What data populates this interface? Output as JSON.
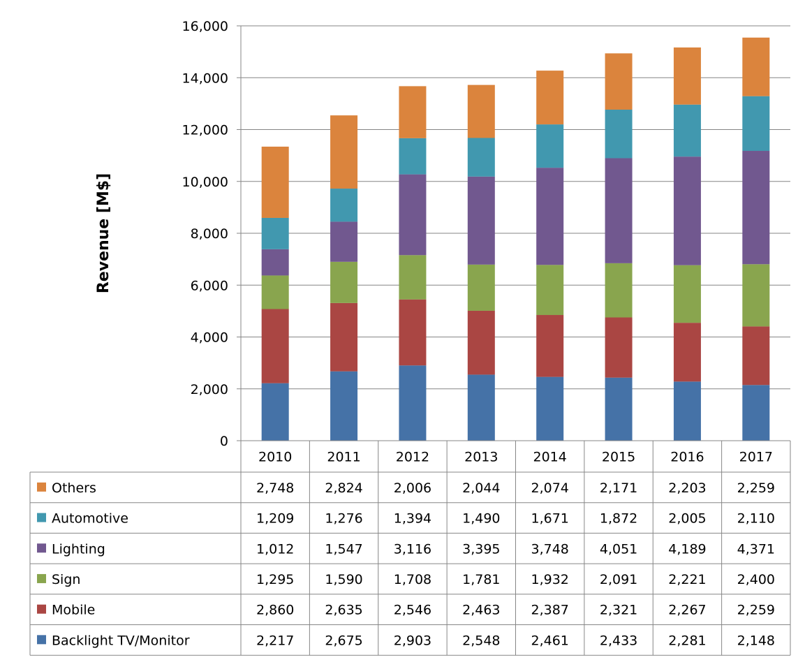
{
  "chart_data": {
    "type": "bar",
    "stacked": true,
    "title": "",
    "xlabel": "",
    "ylabel": "Revenue [M$]",
    "ylim": [
      0,
      16000
    ],
    "yticks": [
      "0",
      "2,000",
      "4,000",
      "6,000",
      "8,000",
      "10,000",
      "12,000",
      "14,000",
      "16,000"
    ],
    "grid": true,
    "legend": "data-table",
    "categories": [
      "2010",
      "2011",
      "2012",
      "2013",
      "2014",
      "2015",
      "2016",
      "2017"
    ],
    "series": [
      {
        "name": "Backlight TV/Monitor",
        "color": "#4572A7",
        "values": [
          2217,
          2675,
          2903,
          2548,
          2461,
          2433,
          2281,
          2148
        ],
        "labels": [
          "2,217",
          "2,675",
          "2,903",
          "2,548",
          "2,461",
          "2,433",
          "2,281",
          "2,148"
        ]
      },
      {
        "name": "Mobile",
        "color": "#AA4643",
        "values": [
          2860,
          2635,
          2546,
          2463,
          2387,
          2321,
          2267,
          2259
        ],
        "labels": [
          "2,860",
          "2,635",
          "2,546",
          "2,463",
          "2,387",
          "2,321",
          "2,267",
          "2,259"
        ]
      },
      {
        "name": "Sign",
        "color": "#89A54E",
        "values": [
          1295,
          1590,
          1708,
          1781,
          1932,
          2091,
          2221,
          2400
        ],
        "labels": [
          "1,295",
          "1,590",
          "1,708",
          "1,781",
          "1,932",
          "2,091",
          "2,221",
          "2,400"
        ]
      },
      {
        "name": "Lighting",
        "color": "#71588F",
        "values": [
          1012,
          1547,
          3116,
          3395,
          3748,
          4051,
          4189,
          4371
        ],
        "labels": [
          "1,012",
          "1,547",
          "3,116",
          "3,395",
          "3,748",
          "4,051",
          "4,189",
          "4,371"
        ]
      },
      {
        "name": "Automotive",
        "color": "#4198AF",
        "values": [
          1209,
          1276,
          1394,
          1490,
          1671,
          1872,
          2005,
          2110
        ],
        "labels": [
          "1,209",
          "1,276",
          "1,394",
          "1,490",
          "1,671",
          "1,872",
          "2,005",
          "2,110"
        ]
      },
      {
        "name": "Others",
        "color": "#DB843D",
        "values": [
          2748,
          2824,
          2006,
          2044,
          2074,
          2171,
          2203,
          2259
        ],
        "labels": [
          "2,748",
          "2,824",
          "2,006",
          "2,044",
          "2,074",
          "2,171",
          "2,203",
          "2,259"
        ]
      }
    ]
  }
}
